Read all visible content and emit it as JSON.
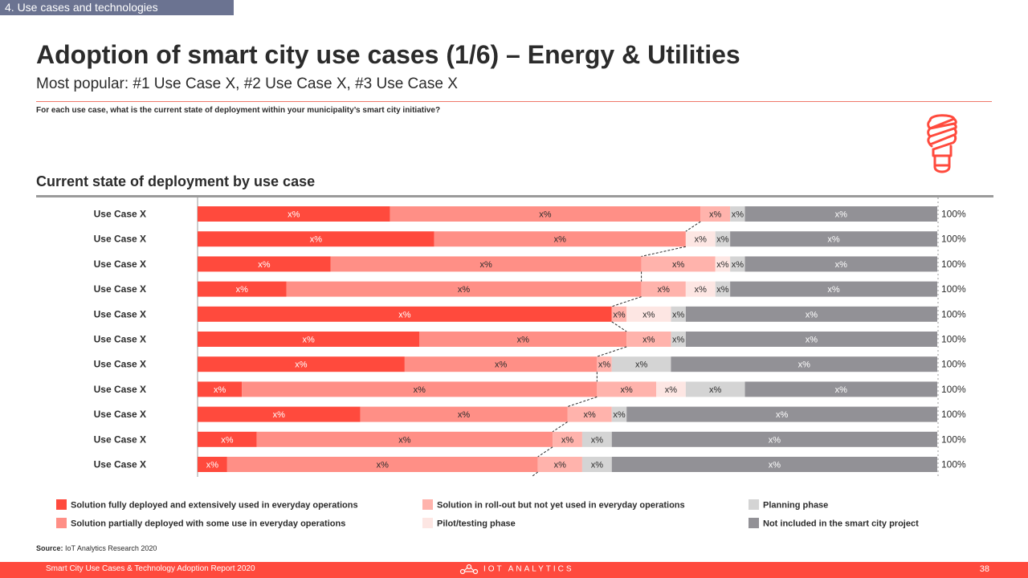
{
  "section_tag": "4. Use cases and technologies",
  "title": "Adoption of smart city use cases (1/6) – Energy & Utilities",
  "subtitle": "Most popular: #1 Use Case X, #2 Use Case X, #3 Use Case X",
  "question": "For each use case, what is the current state of deployment within your municipality’s  smart city initiative?",
  "chart_title": "Current state of deployment by use case",
  "icon": "light-bulb-icon",
  "colors": {
    "fully_deployed": "#ff4a3d",
    "partially_deployed": "#ff8f86",
    "rollout": "#ffb3ac",
    "pilot": "#fde6e3",
    "planning": "#d4d4d4",
    "not_included": "#929196",
    "accent": "#ff4a3d"
  },
  "chart_data": {
    "type": "bar",
    "orientation": "horizontal",
    "stacked": true,
    "categories": [
      "Use Case X",
      "Use Case X",
      "Use Case X",
      "Use Case X",
      "Use Case X",
      "Use Case X",
      "Use Case X",
      "Use Case X",
      "Use Case X",
      "Use Case X",
      "Use Case X"
    ],
    "series": [
      {
        "name": "Solution fully deployed and extensively used in everyday operations",
        "values": [
          26,
          32,
          18,
          12,
          56,
          30,
          28,
          6,
          22,
          8,
          4
        ],
        "labels": [
          "x%",
          "x%",
          "x%",
          "x%",
          "x%",
          "x%",
          "x%",
          "x%",
          "x%",
          "x%",
          "x%"
        ]
      },
      {
        "name": "Solution partially deployed with some use in everyday operations",
        "values": [
          42,
          34,
          42,
          48,
          0,
          28,
          26,
          48,
          28,
          40,
          42
        ],
        "labels": [
          "x%",
          "x%",
          "x%",
          "x%",
          "",
          "x%",
          "x%",
          "x%",
          "x%",
          "x%",
          "x%"
        ]
      },
      {
        "name": "Solution in roll-out but not yet used in everyday operations",
        "values": [
          4,
          0,
          10,
          6,
          2,
          6,
          2,
          8,
          6,
          4,
          6
        ],
        "labels": [
          "x%",
          "",
          "x%",
          "x%",
          "x%",
          "x%",
          "x%",
          "x%",
          "x%",
          "x%",
          "x%"
        ]
      },
      {
        "name": "Pilot/testing phase",
        "values": [
          0,
          4,
          2,
          4,
          6,
          0,
          0,
          4,
          0,
          0,
          0
        ],
        "labels": [
          "",
          "x%",
          "x%",
          "x%",
          "x%",
          "",
          "",
          "x%",
          "",
          "",
          ""
        ]
      },
      {
        "name": "Planning phase",
        "values": [
          2,
          2,
          2,
          2,
          2,
          2,
          8,
          8,
          2,
          4,
          4
        ],
        "labels": [
          "x%",
          "x%",
          "x%",
          "x%",
          "x%",
          "x%",
          "x%",
          "x%",
          "x%",
          "x%",
          "x%"
        ]
      },
      {
        "name": "Not included in the smart city project",
        "values": [
          26,
          28,
          26,
          28,
          34,
          34,
          36,
          26,
          42,
          44,
          44
        ],
        "labels": [
          "x%",
          "x%",
          "x%",
          "x%",
          "x%",
          "x%",
          "x%",
          "x%",
          "x%",
          "x%",
          "x%"
        ]
      }
    ],
    "totals": [
      "100%",
      "100%",
      "100%",
      "100%",
      "100%",
      "100%",
      "100%",
      "100%",
      "100%",
      "100%",
      "100%"
    ],
    "xlim": [
      0,
      100
    ],
    "legend_position": "bottom"
  },
  "legend": [
    {
      "label": "Solution fully deployed and extensively used in everyday operations",
      "color": "#ff4a3d"
    },
    {
      "label": "Solution partially deployed with some use in everyday operations",
      "color": "#ff8f86"
    },
    {
      "label": "Solution in roll-out but not yet used in everyday operations",
      "color": "#ffb3ac"
    },
    {
      "label": "Pilot/testing phase",
      "color": "#fde6e3"
    },
    {
      "label": "Planning phase",
      "color": "#d4d4d4"
    },
    {
      "label": "Not included in the smart city project",
      "color": "#929196"
    }
  ],
  "source": {
    "label": "Source:",
    "text": "IoT Analytics Research 2020"
  },
  "footer": {
    "report": "Smart City Use Cases & Technology Adoption Report 2020",
    "brand": "IOT ANALYTICS",
    "page": "38"
  }
}
